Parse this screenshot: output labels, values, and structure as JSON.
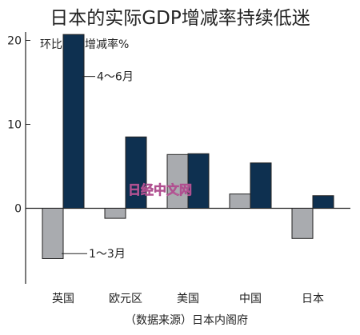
{
  "chart_data": {
    "type": "bar",
    "title": "日本的实际GDP增减率持续低迷",
    "unit_label": "环比年化增减率%",
    "categories": [
      "英国",
      "欧元区",
      "美国",
      "中国",
      "日本"
    ],
    "series": [
      {
        "name": "1～3月",
        "values": [
          -6.0,
          -1.2,
          6.4,
          1.7,
          -3.6
        ],
        "color": "#a9abaf"
      },
      {
        "name": "4～6月",
        "values": [
          20.7,
          8.5,
          6.5,
          5.4,
          1.5
        ],
        "color": "#0e3050"
      }
    ],
    "ylim": [
      -9,
      21
    ],
    "y_ticks": [
      0,
      10,
      20
    ],
    "y_tick_labels": [
      "0",
      "10",
      "20"
    ],
    "source": "（数据来源）日本内阁府",
    "watermark": "日经中文网",
    "grid": false
  }
}
